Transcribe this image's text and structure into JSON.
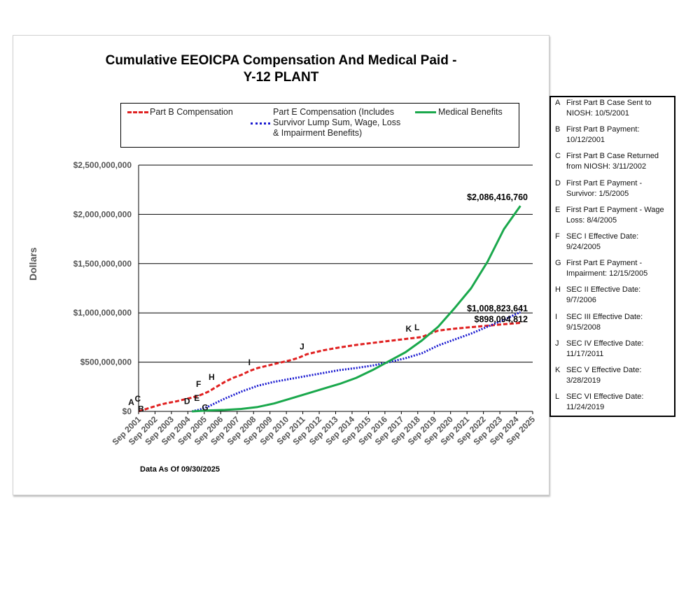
{
  "title_line1": "Cumulative EEOICPA Compensation And Medical Paid -",
  "title_line2": "Y-12 PLANT",
  "data_as_of": "Data As Of  09/30/2025",
  "colors": {
    "part_b": "#e02020",
    "part_e": "#1a1ad0",
    "medical": "#1aa84c"
  },
  "legend": [
    {
      "name": "Part B Compensation"
    },
    {
      "name": "Part E Compensation (Includes Survivor Lump Sum, Wage, Loss & Impairment Benefits)"
    },
    {
      "name": "Medical Benefits"
    }
  ],
  "events": [
    {
      "letter": "A",
      "text": "First Part B Case Sent to NIOSH: 10/5/2001"
    },
    {
      "letter": "B",
      "text": "First Part B Payment: 10/12/2001"
    },
    {
      "letter": "C",
      "text": "First Part B Case Returned from NIOSH: 3/11/2002"
    },
    {
      "letter": "D",
      "text": "First Part E Payment - Survivor: 1/5/2005"
    },
    {
      "letter": "E",
      "text": "First Part E Payment - Wage Loss: 8/4/2005"
    },
    {
      "letter": "F",
      "text": "SEC I Effective Date: 9/24/2005"
    },
    {
      "letter": "G",
      "text": "First Part E Payment - Impairment: 12/15/2005"
    },
    {
      "letter": "H",
      "text": "SEC II Effective Date: 9/7/2006"
    },
    {
      "letter": "I",
      "text": "SEC III Effective Date: 9/15/2008"
    },
    {
      "letter": "J",
      "text": "SEC IV Effective Date: 11/17/2011"
    },
    {
      "letter": "K",
      "text": "SEC V Effective Date: 3/28/2019"
    },
    {
      "letter": "L",
      "text": "SEC VI Effective Date: 11/24/2019"
    }
  ],
  "chart_data": {
    "type": "line",
    "title": "Cumulative EEOICPA Compensation And Medical Paid - Y-12 PLANT",
    "xlabel": "",
    "ylabel": "Dollars",
    "ylim": [
      0,
      2500000000
    ],
    "yticks": [
      0,
      500000000,
      1000000000,
      1500000000,
      2000000000,
      2500000000
    ],
    "ytick_labels": [
      "$0",
      "$500,000,000",
      "$1,000,000,000",
      "$1,500,000,000",
      "$2,000,000,000",
      "$2,500,000,000"
    ],
    "grid": true,
    "legend_position": "top",
    "categories": [
      "Sep 2001",
      "Sep 2002",
      "Sep 2003",
      "Sep 2004",
      "Sep 2005",
      "Sep 2006",
      "Sep 2007",
      "Sep 2008",
      "Sep 2009",
      "Sep 2010",
      "Sep 2011",
      "Sep 2012",
      "Sep 2013",
      "Sep 2014",
      "Sep 2015",
      "Sep 2016",
      "Sep 2017",
      "Sep 2018",
      "Sep 2019",
      "Sep 2020",
      "Sep 2021",
      "Sep 2022",
      "Sep 2023",
      "Sep 2024",
      "Sep 2025"
    ],
    "series": [
      {
        "name": "Part B Compensation",
        "style": "dashed",
        "x": [
          2001.75,
          2002.5,
          2003,
          2003.5,
          2004,
          2004.5,
          2005,
          2005.5,
          2006,
          2006.5,
          2007,
          2007.5,
          2008,
          2008.5,
          2009,
          2009.5,
          2010,
          2010.5,
          2011,
          2011.5,
          2012,
          2013,
          2014,
          2015,
          2016,
          2017,
          2018,
          2018.5,
          2019,
          2019.5,
          2020,
          2021,
          2022,
          2023,
          2024,
          2025
        ],
        "values": [
          0,
          40000000,
          65000000,
          85000000,
          100000000,
          120000000,
          140000000,
          165000000,
          200000000,
          250000000,
          300000000,
          340000000,
          370000000,
          410000000,
          440000000,
          460000000,
          480000000,
          500000000,
          520000000,
          545000000,
          580000000,
          620000000,
          650000000,
          675000000,
          695000000,
          715000000,
          735000000,
          745000000,
          755000000,
          790000000,
          820000000,
          840000000,
          855000000,
          870000000,
          885000000,
          898094812
        ]
      },
      {
        "name": "Part E Compensation (Includes Survivor Lump Sum, Wage, Loss & Impairment Benefits)",
        "style": "dotted",
        "x": [
          2005,
          2005.5,
          2006,
          2006.5,
          2007,
          2008,
          2009,
          2010,
          2011,
          2012,
          2013,
          2014,
          2015,
          2016,
          2017,
          2018,
          2019,
          2020,
          2021,
          2022,
          2023,
          2024,
          2025
        ],
        "values": [
          0,
          20000000,
          50000000,
          90000000,
          130000000,
          200000000,
          260000000,
          300000000,
          330000000,
          360000000,
          390000000,
          420000000,
          440000000,
          465000000,
          500000000,
          540000000,
          590000000,
          670000000,
          730000000,
          790000000,
          860000000,
          930000000,
          1008823641
        ]
      },
      {
        "name": "Medical Benefits",
        "style": "solid",
        "x": [
          2005,
          2006,
          2007,
          2008,
          2009,
          2010,
          2011,
          2012,
          2013,
          2014,
          2015,
          2016,
          2017,
          2018,
          2019,
          2020,
          2021,
          2022,
          2023,
          2024,
          2025
        ],
        "values": [
          0,
          10000000,
          15000000,
          25000000,
          45000000,
          80000000,
          130000000,
          180000000,
          230000000,
          280000000,
          340000000,
          420000000,
          510000000,
          600000000,
          720000000,
          860000000,
          1050000000,
          1250000000,
          1520000000,
          1850000000,
          2086416760
        ]
      }
    ],
    "end_labels": [
      {
        "series": "Medical Benefits",
        "label": "$2,086,416,760"
      },
      {
        "series": "Part E Compensation",
        "label": "$1,008,823,641"
      },
      {
        "series": "Part B Compensation",
        "label": "$898,094,812"
      }
    ],
    "event_markers": [
      {
        "letter": "A",
        "x": 2001.3,
        "y": 65000000
      },
      {
        "letter": "C",
        "x": 2001.7,
        "y": 100000000
      },
      {
        "letter": "B",
        "x": 2001.9,
        "y": -5000000
      },
      {
        "letter": "D",
        "x": 2004.7,
        "y": 75000000
      },
      {
        "letter": "E",
        "x": 2005.3,
        "y": 105000000
      },
      {
        "letter": "F",
        "x": 2005.4,
        "y": 250000000
      },
      {
        "letter": "G",
        "x": 2005.8,
        "y": 10000000
      },
      {
        "letter": "H",
        "x": 2006.2,
        "y": 320000000
      },
      {
        "letter": "I",
        "x": 2008.5,
        "y": 470000000
      },
      {
        "letter": "J",
        "x": 2011.7,
        "y": 630000000
      },
      {
        "letter": "K",
        "x": 2018.2,
        "y": 810000000
      },
      {
        "letter": "L",
        "x": 2018.7,
        "y": 825000000
      }
    ]
  }
}
